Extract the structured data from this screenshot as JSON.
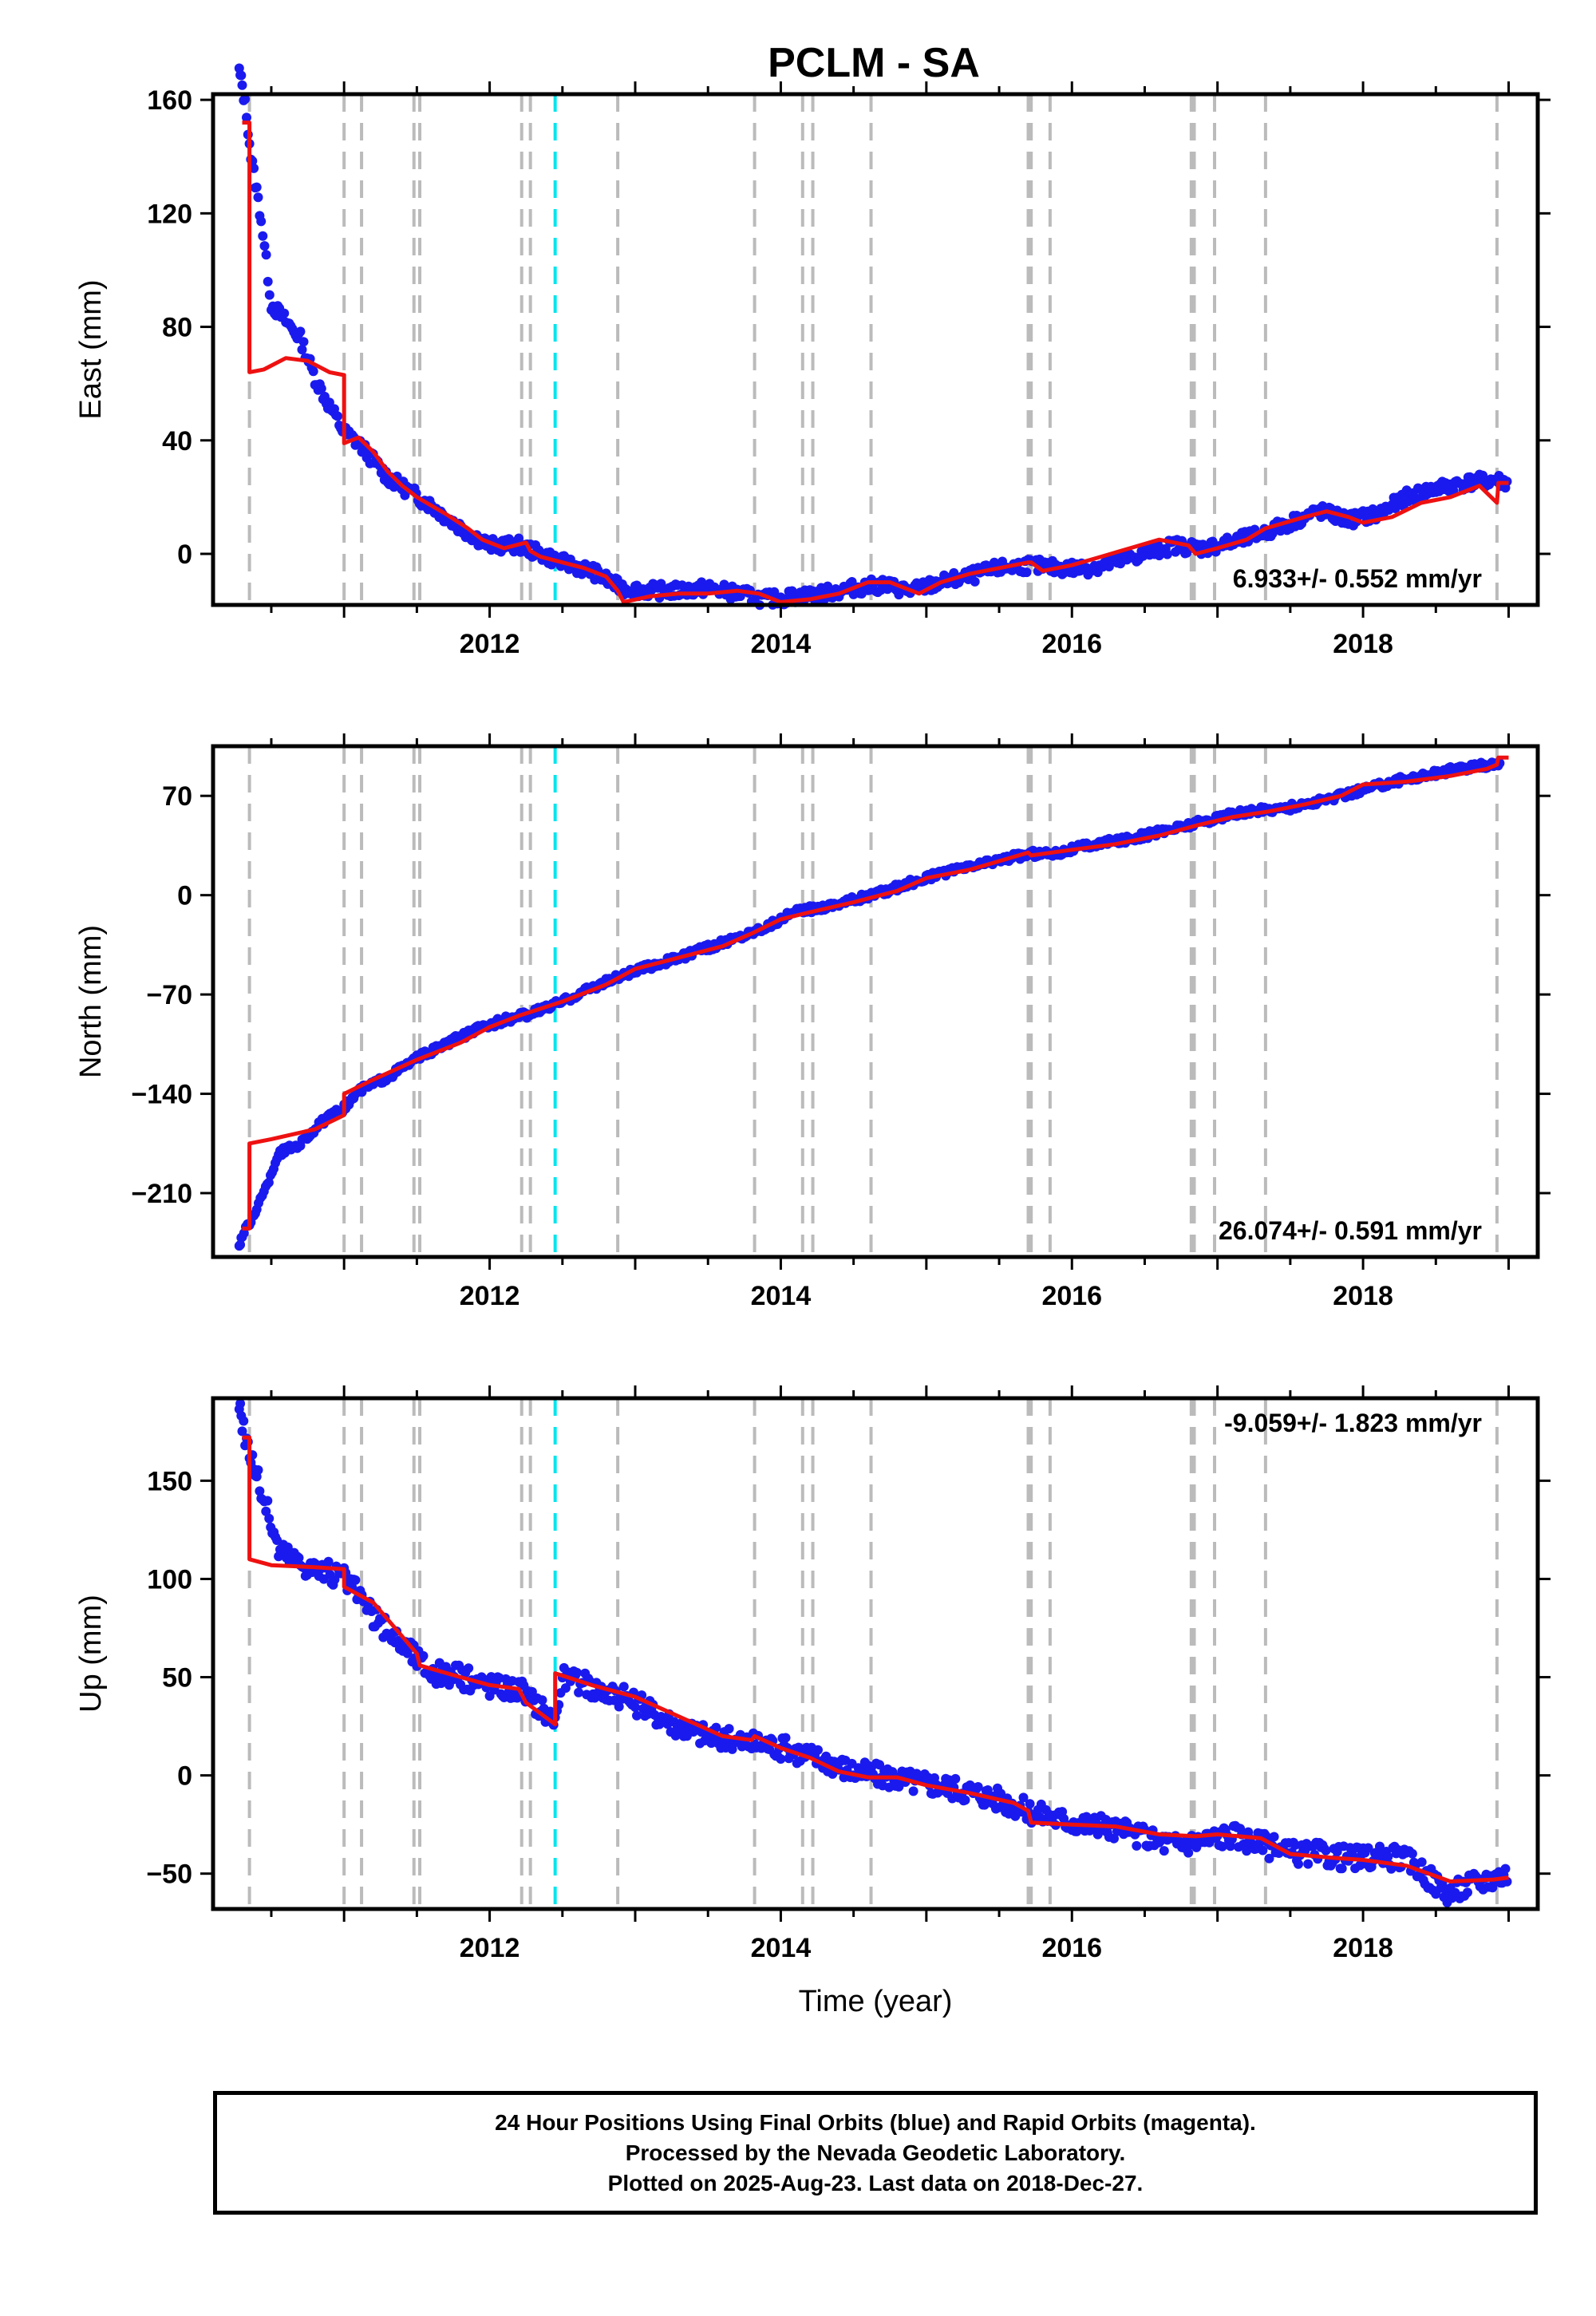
{
  "title": "PCLM - SA",
  "colors": {
    "data": "#1a1aee",
    "model": "#ee1111",
    "event_gray": "#bbbbbb",
    "event_cyan": "#00e5ee",
    "frame": "#000000"
  },
  "chart_data": [
    {
      "type": "scatter",
      "panel": "east",
      "ylabel": "East (mm)",
      "xlabel": "",
      "rate_label": "6.933+/- 0.552 mm/yr",
      "rate_position": "bottom-right",
      "xlim": [
        2010.1,
        2019.2
      ],
      "ylim": [
        -18,
        162
      ],
      "yticks": [
        0,
        40,
        80,
        120,
        160
      ],
      "xticks": [
        2012,
        2014,
        2016,
        2018
      ],
      "series": [
        {
          "role": "positions",
          "x": [
            2010.28,
            2010.3,
            2010.33,
            2010.36,
            2010.4,
            2010.43,
            2010.5,
            2010.7,
            2010.8,
            2010.9,
            2011.0,
            2011.1,
            2011.2,
            2011.3,
            2011.45,
            2011.6,
            2011.75,
            2011.9,
            2012.0,
            2012.2,
            2012.35,
            2012.5,
            2012.7,
            2012.9,
            2013.1,
            2013.3,
            2013.5,
            2013.7,
            2013.9,
            2014.1,
            2014.3,
            2014.5,
            2014.7,
            2014.9,
            2015.1,
            2015.3,
            2015.5,
            2015.7,
            2015.9,
            2016.1,
            2016.3,
            2016.5,
            2016.7,
            2016.9,
            2017.1,
            2017.3,
            2017.5,
            2017.7,
            2017.9,
            2018.1,
            2018.3,
            2018.5,
            2018.7,
            2018.9,
            2019.0
          ],
          "y": [
            170,
            165,
            155,
            140,
            128,
            118,
            88,
            76,
            62,
            52,
            43,
            39,
            33,
            27,
            22,
            17,
            11,
            6,
            3,
            3,
            0,
            -3,
            -6,
            -12,
            -13,
            -13,
            -12,
            -14,
            -16,
            -15,
            -14,
            -12,
            -11,
            -13,
            -10,
            -8,
            -5,
            -4,
            -5,
            -5,
            -3,
            0,
            3,
            2,
            4,
            7,
            11,
            15,
            12,
            14,
            20,
            23,
            25,
            26,
            25
          ]
        }
      ],
      "model": {
        "x": [
          2010.3,
          2010.35,
          2010.35,
          2010.45,
          2010.6,
          2010.75,
          2010.9,
          2011.0,
          2011.0,
          2011.1,
          2011.2,
          2011.3,
          2011.4,
          2011.5,
          2011.7,
          2011.85,
          2011.95,
          2012.1,
          2012.25,
          2012.28,
          2012.35,
          2012.5,
          2012.65,
          2012.8,
          2012.88,
          2012.92,
          2013.1,
          2013.3,
          2013.5,
          2013.7,
          2013.85,
          2014.0,
          2014.2,
          2014.4,
          2014.6,
          2014.75,
          2014.95,
          2015.1,
          2015.3,
          2015.5,
          2015.7,
          2015.72,
          2015.8,
          2016.0,
          2016.2,
          2016.4,
          2016.6,
          2016.8,
          2016.85,
          2017.0,
          2017.2,
          2017.33,
          2017.4,
          2017.6,
          2017.75,
          2017.9,
          2018.0,
          2018.2,
          2018.4,
          2018.6,
          2018.8,
          2018.92,
          2018.93,
          2019.0
        ],
        "y": [
          152,
          152,
          64,
          65,
          69,
          68,
          64,
          63,
          39,
          41,
          36,
          29,
          24,
          20,
          14,
          9,
          5,
          2,
          4,
          1,
          -1,
          -3,
          -5,
          -8,
          -13,
          -17,
          -15,
          -14,
          -14,
          -13,
          -14,
          -17,
          -16,
          -14,
          -10,
          -10,
          -14,
          -10,
          -7,
          -5,
          -3,
          -3,
          -6,
          -4,
          -1,
          2,
          5,
          3,
          0,
          2,
          5,
          9,
          10,
          13,
          15,
          13,
          11,
          13,
          18,
          20,
          24,
          18,
          25,
          25
        ]
      }
    },
    {
      "type": "scatter",
      "panel": "north",
      "ylabel": "North (mm)",
      "xlabel": "",
      "rate_label": "26.074+/- 0.591 mm/yr",
      "rate_position": "bottom-right",
      "xlim": [
        2010.1,
        2019.2
      ],
      "ylim": [
        -255,
        105
      ],
      "yticks": [
        -210,
        -140,
        -70,
        0,
        70
      ],
      "xticks": [
        2012,
        2014,
        2016,
        2018
      ],
      "series": [
        {
          "role": "positions",
          "x": [
            2010.28,
            2010.3,
            2010.35,
            2010.4,
            2010.45,
            2010.55,
            2010.7,
            2010.85,
            2011.0,
            2011.1,
            2011.3,
            2011.5,
            2011.7,
            2011.9,
            2012.1,
            2012.3,
            2012.5,
            2012.7,
            2012.9,
            2013.1,
            2013.3,
            2013.5,
            2013.7,
            2013.9,
            2014.1,
            2014.3,
            2014.5,
            2014.7,
            2014.9,
            2015.1,
            2015.3,
            2015.5,
            2015.7,
            2015.9,
            2016.1,
            2016.3,
            2016.5,
            2016.7,
            2016.9,
            2017.1,
            2017.3,
            2017.5,
            2017.7,
            2018.2,
            2018.4,
            2018.6,
            2018.8,
            2018.95
          ],
          "y": [
            -247,
            -240,
            -232,
            -220,
            -210,
            -182,
            -175,
            -160,
            -150,
            -138,
            -128,
            -115,
            -105,
            -95,
            -88,
            -83,
            -75,
            -65,
            -57,
            -50,
            -44,
            -37,
            -30,
            -22,
            -12,
            -8,
            -3,
            2,
            9,
            15,
            20,
            25,
            29,
            30,
            35,
            38,
            42,
            47,
            52,
            57,
            60,
            62,
            66,
            80,
            84,
            88,
            91,
            94
          ]
        }
      ],
      "model": {
        "x": [
          2010.3,
          2010.35,
          2010.35,
          2010.5,
          2010.8,
          2011.0,
          2011.0,
          2011.2,
          2011.5,
          2011.8,
          2012.0,
          2012.2,
          2012.5,
          2012.8,
          2013.0,
          2013.3,
          2013.6,
          2013.8,
          2014.0,
          2014.2,
          2014.5,
          2014.8,
          2015.0,
          2015.3,
          2015.5,
          2015.7,
          2015.72,
          2016.0,
          2016.3,
          2016.6,
          2016.85,
          2017.1,
          2017.35,
          2017.6,
          2017.85,
          2018.0,
          2018.3,
          2018.6,
          2018.85,
          2018.92,
          2018.93,
          2019.0
        ],
        "y": [
          -235,
          -235,
          -175,
          -172,
          -165,
          -155,
          -140,
          -130,
          -116,
          -104,
          -93,
          -85,
          -75,
          -63,
          -52,
          -44,
          -36,
          -27,
          -17,
          -12,
          -5,
          3,
          12,
          18,
          24,
          30,
          28,
          32,
          36,
          42,
          49,
          55,
          59,
          64,
          70,
          78,
          80,
          84,
          89,
          92,
          97,
          97
        ]
      }
    },
    {
      "type": "scatter",
      "panel": "up",
      "ylabel": "Up (mm)",
      "xlabel": "Time (year)",
      "rate_label": "-9.059+/- 1.823 mm/yr",
      "rate_position": "top-right",
      "xlim": [
        2010.1,
        2019.2
      ],
      "ylim": [
        -68,
        192
      ],
      "yticks": [
        -50,
        0,
        50,
        100,
        150
      ],
      "xticks": [
        2012,
        2014,
        2016,
        2018
      ],
      "series": [
        {
          "role": "positions",
          "x": [
            2010.28,
            2010.3,
            2010.33,
            2010.37,
            2010.42,
            2010.55,
            2010.7,
            2010.85,
            2011.0,
            2011.1,
            2011.2,
            2011.35,
            2011.5,
            2011.6,
            2011.8,
            2012.0,
            2012.2,
            2012.35,
            2012.45,
            2012.5,
            2012.7,
            2012.9,
            2013.1,
            2013.3,
            2013.5,
            2013.7,
            2013.9,
            2014.1,
            2014.3,
            2014.5,
            2014.7,
            2014.9,
            2015.1,
            2015.3,
            2015.5,
            2015.7,
            2015.9,
            2016.1,
            2016.3,
            2016.5,
            2016.7,
            2016.9,
            2017.1,
            2017.3,
            2017.5,
            2017.7,
            2017.9,
            2018.25,
            2018.35,
            2018.5,
            2018.6,
            2018.75,
            2018.9,
            2019.0
          ],
          "y": [
            190,
            180,
            170,
            160,
            148,
            115,
            108,
            104,
            100,
            92,
            80,
            70,
            60,
            52,
            50,
            46,
            44,
            35,
            28,
            50,
            45,
            40,
            33,
            25,
            20,
            17,
            16,
            12,
            8,
            2,
            0,
            -3,
            -5,
            -8,
            -12,
            -18,
            -22,
            -25,
            -28,
            -32,
            -35,
            -33,
            -30,
            -35,
            -40,
            -40,
            -42,
            -42,
            -45,
            -55,
            -60,
            -55,
            -52,
            -50
          ]
        }
      ],
      "model": {
        "x": [
          2010.3,
          2010.35,
          2010.35,
          2010.5,
          2010.8,
          2011.0,
          2011.0,
          2011.2,
          2011.5,
          2011.52,
          2011.8,
          2012.0,
          2012.2,
          2012.25,
          2012.45,
          2012.45,
          2012.7,
          2013.0,
          2013.3,
          2013.6,
          2013.8,
          2013.82,
          2014.0,
          2014.2,
          2014.4,
          2014.6,
          2014.8,
          2015.0,
          2015.3,
          2015.6,
          2015.7,
          2015.72,
          2016.0,
          2016.3,
          2016.6,
          2016.85,
          2017.0,
          2017.3,
          2017.5,
          2017.8,
          2018.0,
          2018.3,
          2018.6,
          2018.9,
          2019.0
        ],
        "y": [
          172,
          172,
          110,
          107,
          106,
          105,
          96,
          88,
          62,
          56,
          50,
          46,
          44,
          37,
          26,
          52,
          46,
          40,
          30,
          20,
          18,
          20,
          14,
          9,
          2,
          -1,
          -1,
          -5,
          -9,
          -14,
          -18,
          -24,
          -25,
          -26,
          -30,
          -31,
          -30,
          -32,
          -40,
          -42,
          -43,
          -46,
          -54,
          -53,
          -52
        ]
      },
      "events_gray": [
        2010.35,
        2011.0,
        2011.12,
        2011.48,
        2011.52,
        2012.22,
        2012.28,
        2012.88,
        2013.82,
        2014.15,
        2014.22,
        2014.62,
        2015.7,
        2015.72,
        2015.85,
        2016.82,
        2016.84,
        2016.98,
        2017.33,
        2018.92
      ],
      "events_cyan": [
        2012.45
      ]
    }
  ],
  "footer": {
    "line1": "24 Hour Positions Using Final Orbits (blue) and Rapid Orbits (magenta).",
    "line2": "Processed by the Nevada Geodetic Laboratory.",
    "line3": "Plotted on 2025-Aug-23. Last data on 2018-Dec-27."
  }
}
